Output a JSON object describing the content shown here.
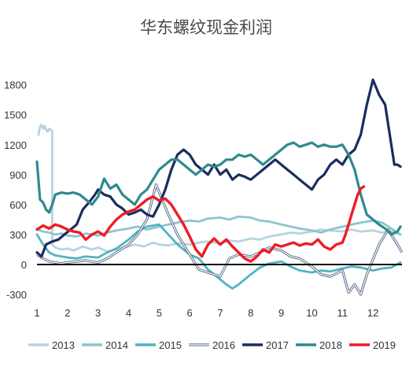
{
  "chart_data": {
    "type": "line",
    "title": "华东螺纹现金利润",
    "xlabel": "",
    "ylabel": "",
    "x_ticks": [
      "1",
      "2",
      "3",
      "4",
      "5",
      "6",
      "7",
      "8",
      "9",
      "10",
      "11",
      "12"
    ],
    "xlim": [
      1,
      12.95
    ],
    "y_ticks": [
      -300,
      0,
      300,
      600,
      900,
      1200,
      1500,
      1800
    ],
    "y_tick_labels": [
      "-300",
      "0",
      "300",
      "600",
      "900",
      "1200",
      "1500",
      "1800"
    ],
    "ylim": [
      -300,
      1900
    ],
    "grid": false,
    "legend_position": "bottom",
    "series": [
      {
        "name": "2013",
        "color": "#b8d3df",
        "style": "solid",
        "x": [
          1.05,
          1.1,
          1.15,
          1.2,
          1.25,
          1.3,
          1.35,
          1.4,
          1.45,
          1.5,
          1.5,
          1.6,
          1.8,
          2.0,
          2.2,
          2.5,
          2.8,
          3.0,
          3.3,
          3.6,
          4.0,
          4.2,
          4.5,
          4.8,
          5.0,
          5.3,
          5.6,
          6.0,
          6.3,
          6.6,
          7.0,
          7.3,
          7.6,
          8.0,
          8.3,
          8.6,
          9.0,
          9.3,
          9.6,
          10.0,
          10.3,
          10.6,
          11.0,
          11.3,
          11.6,
          12.0,
          12.3,
          12.6,
          12.9
        ],
        "values": [
          1300,
          1380,
          1400,
          1360,
          1390,
          1350,
          1330,
          1360,
          1350,
          1340,
          200,
          170,
          150,
          160,
          140,
          180,
          150,
          170,
          130,
          150,
          180,
          200,
          180,
          220,
          200,
          190,
          210,
          200,
          220,
          230,
          210,
          240,
          230,
          260,
          250,
          280,
          300,
          320,
          310,
          330,
          350,
          340,
          330,
          350,
          330,
          340,
          320,
          330,
          300
        ]
      },
      {
        "name": "2014",
        "color": "#8ec3cf",
        "style": "solid",
        "x": [
          1.0,
          1.2,
          1.4,
          1.6,
          1.8,
          2.0,
          2.3,
          2.6,
          3.0,
          3.3,
          3.6,
          4.0,
          4.3,
          4.6,
          5.0,
          5.3,
          5.6,
          6.0,
          6.3,
          6.6,
          7.0,
          7.3,
          7.6,
          8.0,
          8.3,
          8.6,
          9.0,
          9.3,
          9.6,
          10.0,
          10.3,
          10.6,
          11.0,
          11.3,
          11.6,
          12.0,
          12.3,
          12.6,
          12.9
        ],
        "values": [
          350,
          330,
          320,
          300,
          310,
          290,
          280,
          310,
          290,
          320,
          340,
          360,
          380,
          350,
          380,
          400,
          420,
          440,
          430,
          460,
          470,
          450,
          480,
          470,
          440,
          430,
          400,
          380,
          360,
          340,
          320,
          350,
          380,
          400,
          420,
          440,
          420,
          360,
          300
        ]
      },
      {
        "name": "2015",
        "color": "#4fb4c2",
        "style": "solid",
        "x": [
          1.0,
          1.2,
          1.4,
          1.6,
          1.8,
          2.0,
          2.3,
          2.6,
          3.0,
          3.3,
          3.6,
          4.0,
          4.3,
          4.6,
          5.0,
          5.3,
          5.6,
          6.0,
          6.3,
          6.6,
          7.0,
          7.2,
          7.4,
          7.6,
          8.0,
          8.3,
          8.6,
          9.0,
          9.3,
          9.6,
          10.0,
          10.3,
          10.6,
          11.0,
          11.3,
          11.6,
          12.0,
          12.3,
          12.6,
          12.9
        ],
        "values": [
          300,
          200,
          120,
          90,
          80,
          70,
          60,
          80,
          70,
          120,
          160,
          250,
          330,
          380,
          400,
          300,
          200,
          100,
          60,
          -50,
          -150,
          -200,
          -240,
          -200,
          -100,
          -30,
          10,
          30,
          -20,
          -60,
          -80,
          -60,
          -70,
          -40,
          -20,
          -30,
          -60,
          -40,
          -30,
          20
        ]
      },
      {
        "name": "2016",
        "color": "#5d6f8e",
        "style": "double",
        "x": [
          1.0,
          1.2,
          1.4,
          1.6,
          1.8,
          2.0,
          2.3,
          2.6,
          3.0,
          3.3,
          3.6,
          4.0,
          4.3,
          4.6,
          4.9,
          5.1,
          5.3,
          5.6,
          6.0,
          6.3,
          6.6,
          7.0,
          7.3,
          7.6,
          8.0,
          8.3,
          8.6,
          9.0,
          9.3,
          9.6,
          10.0,
          10.3,
          10.6,
          11.0,
          11.2,
          11.4,
          11.6,
          11.8,
          12.0,
          12.2,
          12.5,
          12.8,
          12.95
        ],
        "values": [
          100,
          60,
          30,
          20,
          10,
          20,
          30,
          40,
          20,
          60,
          120,
          200,
          300,
          450,
          800,
          650,
          500,
          300,
          100,
          -50,
          -80,
          -120,
          60,
          100,
          80,
          120,
          170,
          140,
          80,
          60,
          -20,
          -100,
          -120,
          -60,
          -280,
          -200,
          -300,
          -100,
          50,
          200,
          350,
          200,
          120
        ]
      },
      {
        "name": "2017",
        "color": "#1b2c5e",
        "style": "solid",
        "x": [
          1.0,
          1.15,
          1.3,
          1.5,
          1.7,
          1.9,
          2.1,
          2.3,
          2.5,
          2.7,
          2.9,
          3.0,
          3.2,
          3.4,
          3.6,
          3.8,
          4.0,
          4.2,
          4.4,
          4.6,
          4.8,
          5.0,
          5.2,
          5.4,
          5.6,
          5.8,
          6.0,
          6.2,
          6.4,
          6.6,
          6.8,
          7.0,
          7.2,
          7.4,
          7.6,
          7.8,
          8.0,
          8.2,
          8.4,
          8.6,
          8.8,
          9.0,
          9.2,
          9.4,
          9.6,
          9.8,
          10.0,
          10.2,
          10.4,
          10.6,
          10.8,
          11.0,
          11.2,
          11.4,
          11.6,
          11.8,
          12.0,
          12.2,
          12.4,
          12.5,
          12.6,
          12.7,
          12.8,
          12.9
        ],
        "values": [
          120,
          80,
          200,
          230,
          250,
          300,
          350,
          400,
          550,
          620,
          700,
          750,
          700,
          680,
          600,
          560,
          500,
          520,
          550,
          500,
          480,
          600,
          750,
          950,
          1100,
          1150,
          1100,
          1000,
          950,
          900,
          1000,
          900,
          950,
          850,
          900,
          880,
          850,
          900,
          950,
          1000,
          1050,
          1000,
          950,
          900,
          850,
          800,
          750,
          850,
          900,
          1000,
          1050,
          1000,
          1100,
          1150,
          1300,
          1600,
          1850,
          1700,
          1600,
          1400,
          1200,
          1000,
          1000,
          980
        ]
      },
      {
        "name": "2018",
        "color": "#2e8a8e",
        "style": "solid",
        "x": [
          1.0,
          1.1,
          1.2,
          1.3,
          1.4,
          1.5,
          1.6,
          1.8,
          2.0,
          2.2,
          2.4,
          2.6,
          2.8,
          3.0,
          3.2,
          3.4,
          3.6,
          3.8,
          4.0,
          4.2,
          4.4,
          4.6,
          4.8,
          5.0,
          5.2,
          5.4,
          5.6,
          5.8,
          6.0,
          6.2,
          6.4,
          6.6,
          6.8,
          7.0,
          7.2,
          7.4,
          7.6,
          7.8,
          8.0,
          8.2,
          8.4,
          8.6,
          8.8,
          9.0,
          9.2,
          9.4,
          9.6,
          9.8,
          10.0,
          10.2,
          10.4,
          10.6,
          10.8,
          11.0,
          11.2,
          11.4,
          11.6,
          11.8,
          12.0,
          12.2,
          12.4,
          12.6,
          12.8,
          12.9
        ],
        "values": [
          1030,
          650,
          620,
          550,
          520,
          600,
          700,
          720,
          710,
          720,
          700,
          650,
          600,
          680,
          860,
          760,
          800,
          700,
          650,
          600,
          700,
          750,
          850,
          950,
          1000,
          1050,
          1050,
          1000,
          950,
          900,
          950,
          1000,
          980,
          1000,
          1050,
          1050,
          1100,
          1080,
          1100,
          1050,
          1000,
          1050,
          1100,
          1150,
          1200,
          1220,
          1180,
          1200,
          1220,
          1180,
          1200,
          1180,
          1180,
          1200,
          1100,
          950,
          700,
          500,
          450,
          400,
          360,
          300,
          330,
          380
        ]
      },
      {
        "name": "2019",
        "color": "#ee1c25",
        "style": "solid",
        "x": [
          1.0,
          1.2,
          1.4,
          1.6,
          1.8,
          2.0,
          2.2,
          2.4,
          2.6,
          2.8,
          3.0,
          3.2,
          3.4,
          3.6,
          3.8,
          4.0,
          4.2,
          4.4,
          4.6,
          4.8,
          5.0,
          5.2,
          5.4,
          5.6,
          5.8,
          6.0,
          6.2,
          6.4,
          6.6,
          6.8,
          7.0,
          7.2,
          7.4,
          7.6,
          7.8,
          8.0,
          8.2,
          8.4,
          8.6,
          8.8,
          9.0,
          9.2,
          9.4,
          9.6,
          9.8,
          10.0,
          10.2,
          10.4,
          10.6,
          10.8,
          11.0,
          11.1,
          11.2,
          11.3,
          11.4,
          11.5,
          11.6,
          11.7
        ],
        "values": [
          350,
          390,
          360,
          400,
          380,
          350,
          330,
          320,
          250,
          300,
          330,
          290,
          380,
          450,
          500,
          530,
          550,
          600,
          650,
          680,
          640,
          660,
          600,
          500,
          400,
          280,
          150,
          80,
          200,
          260,
          200,
          250,
          180,
          120,
          60,
          30,
          80,
          150,
          120,
          200,
          180,
          200,
          220,
          190,
          210,
          200,
          250,
          180,
          150,
          200,
          220,
          300,
          400,
          500,
          600,
          700,
          760,
          780
        ]
      }
    ]
  }
}
